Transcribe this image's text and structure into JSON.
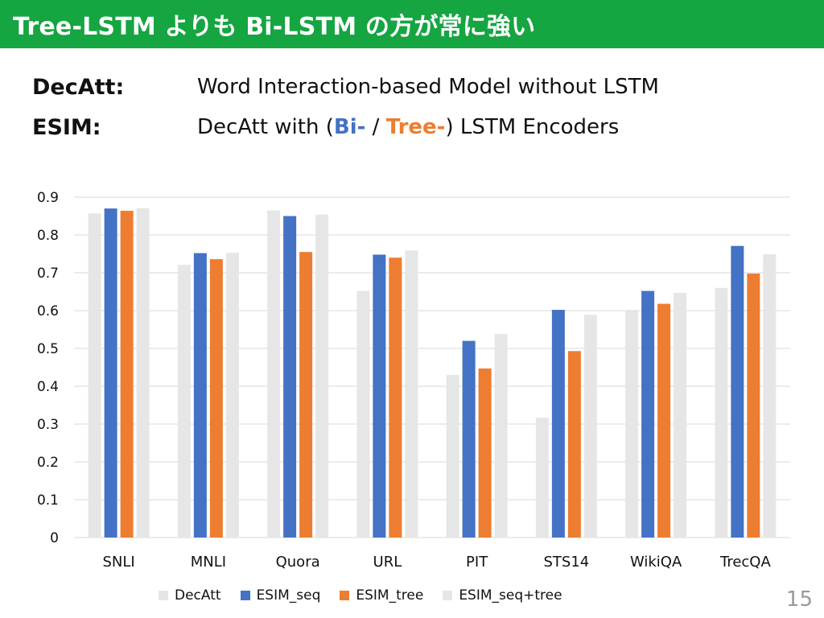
{
  "slide": {
    "title": "Tree-LSTM よりも Bi-LSTM の方が常に強い",
    "page_number": "15",
    "definitions": [
      {
        "term": "DecAtt:",
        "desc_pre": "Word Interaction-based Model without LSTM",
        "desc_bi": "",
        "desc_sep": "",
        "desc_tree": "",
        "desc_post": ""
      },
      {
        "term": "ESIM:",
        "desc_pre": "DecAtt with (",
        "desc_bi": "Bi-",
        "desc_sep": " / ",
        "desc_tree": "Tree-",
        "desc_post": ") LSTM Encoders"
      }
    ],
    "colors": {
      "title_bg": "#15a541",
      "bi": "#4472c4",
      "tree": "#ed7d31"
    }
  },
  "chart_data": {
    "type": "bar",
    "title": "",
    "xlabel": "",
    "ylabel": "",
    "ylim": [
      0,
      0.9
    ],
    "yticks": [
      "0",
      "0.1",
      "0.2",
      "0.3",
      "0.4",
      "0.5",
      "0.6",
      "0.7",
      "0.8",
      "0.9"
    ],
    "grid": true,
    "legend_position": "bottom",
    "categories": [
      "SNLI",
      "MNLI",
      "Quora",
      "URL",
      "PIT",
      "STS14",
      "WikiQA",
      "TrecQA"
    ],
    "series": [
      {
        "name": "DecAtt",
        "color": "#e6e6e6",
        "values": [
          0.857,
          0.721,
          0.865,
          0.652,
          0.43,
          0.317,
          0.599,
          0.66
        ]
      },
      {
        "name": "ESIM_seq",
        "color": "#4472c4",
        "values": [
          0.87,
          0.752,
          0.85,
          0.748,
          0.52,
          0.602,
          0.652,
          0.771
        ]
      },
      {
        "name": "ESIM_tree",
        "color": "#ed7d31",
        "values": [
          0.864,
          0.736,
          0.755,
          0.74,
          0.447,
          0.493,
          0.618,
          0.698
        ]
      },
      {
        "name": "ESIM_seq+tree",
        "color": "#e6e6e6",
        "values": [
          0.871,
          0.753,
          0.854,
          0.759,
          0.538,
          0.589,
          0.647,
          0.749
        ]
      }
    ]
  }
}
